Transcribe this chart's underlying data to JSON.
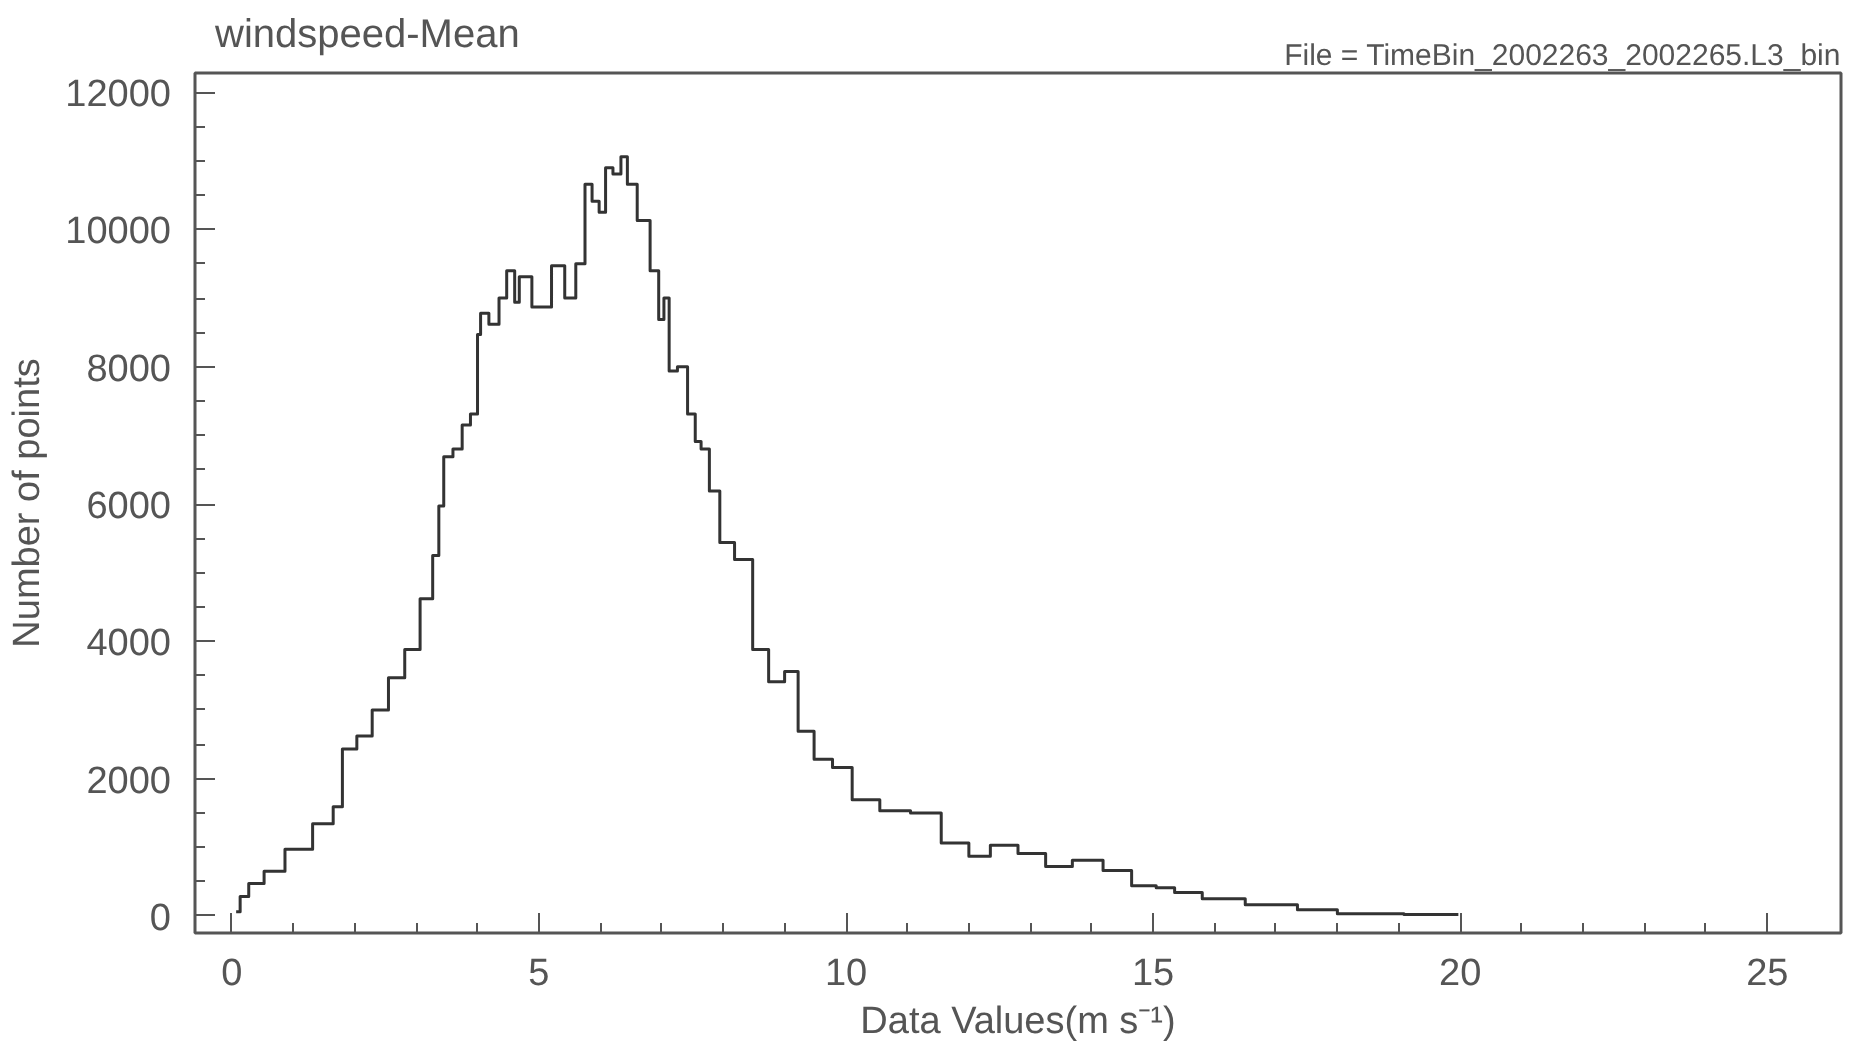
{
  "chart_data": {
    "type": "step",
    "title": "windspeed-Mean",
    "subtitle": "File = TimeBin_2002263_2002265.L3_bin",
    "xlabel": "Data Values(m s⁻¹)",
    "ylabel": "Number of points",
    "x": [
      0.07,
      0.2,
      0.35,
      0.7,
      1.03,
      1.6,
      1.7,
      1.9,
      2.17,
      2.4,
      2.7,
      2.93,
      3.2,
      3.34,
      3.4,
      3.5,
      3.7,
      3.8,
      3.97,
      4.03,
      4.07,
      4.3,
      4.4,
      4.55,
      4.66,
      4.7,
      5.07,
      5.34,
      5.5,
      5.7,
      5.8,
      5.93,
      6.03,
      6.14,
      6.27,
      6.4,
      6.48,
      6.72,
      6.9,
      7.0,
      7.07,
      7.17,
      7.34,
      7.5,
      7.59,
      7.69,
      7.86,
      8.03,
      8.34,
      8.62,
      8.86,
      9.14,
      9.3,
      9.66,
      9.9,
      10.3,
      10.8,
      11.3,
      11.8,
      12.2,
      12.5,
      13.1,
      13.4,
      13.97,
      14.4,
      14.9,
      15.2,
      15.5,
      16.1,
      16.9,
      17.8,
      18.2,
      19.97
    ],
    "series": [
      {
        "color": "#333333",
        "values": [
          60,
          280,
          470,
          650,
          970,
          1340,
          1590,
          2430,
          2620,
          3000,
          3470,
          3880,
          4620,
          5250,
          5970,
          6690,
          6800,
          7150,
          7310,
          8470,
          8780,
          8620,
          9000,
          9400,
          8940,
          9310,
          8870,
          9470,
          9000,
          9500,
          10660,
          10410,
          10250,
          10900,
          10810,
          11060,
          10660,
          10130,
          9400,
          8690,
          9000,
          7940,
          8000,
          7310,
          6910,
          6800,
          6190,
          5440,
          5190,
          3880,
          3410,
          3560,
          2690,
          2280,
          2160,
          1690,
          1530,
          1500,
          1060,
          870,
          1030,
          910,
          720,
          810,
          660,
          440,
          410,
          340,
          250,
          160,
          90,
          30,
          20
        ]
      }
    ],
    "xlim": [
      -0.6,
      26.2
    ],
    "ylim": [
      -250,
      12280
    ],
    "xticks": [
      0,
      5,
      10,
      15,
      20,
      25
    ],
    "yticks": [
      0,
      2000,
      4000,
      6000,
      8000,
      10000,
      12000
    ],
    "grid": false,
    "line_style": "solid"
  }
}
